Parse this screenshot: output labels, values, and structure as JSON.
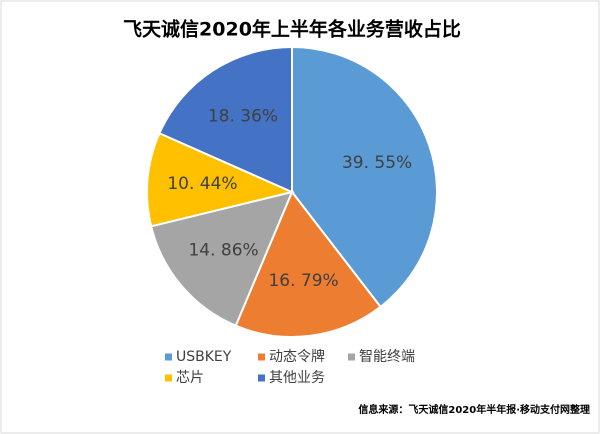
{
  "chart_data": {
    "type": "pie",
    "title": "飞天诚信2020年上半年各业务营收占比",
    "categories": [
      "USBKEY",
      "动态令牌",
      "智能终端",
      "芯片",
      "其他业务"
    ],
    "values": [
      39.55,
      16.79,
      14.86,
      10.44,
      18.36
    ],
    "value_labels": [
      "39. 55%",
      "16. 79%",
      "14. 86%",
      "10. 44%",
      "18. 36%"
    ],
    "colors": [
      "#5b9bd5",
      "#ed7d31",
      "#a5a5a5",
      "#ffc000",
      "#4472c4"
    ],
    "legend": "bottom",
    "source": "信息来源：飞天诚信2020年半年报·移动支付网整理"
  }
}
